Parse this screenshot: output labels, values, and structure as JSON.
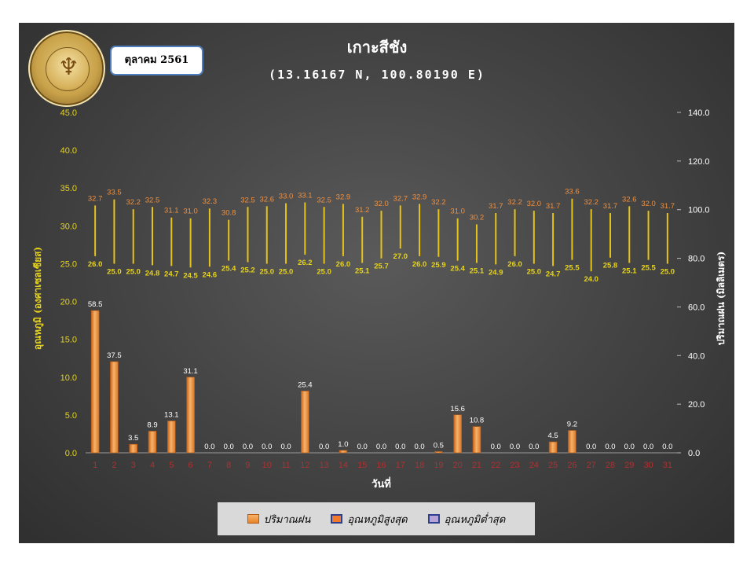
{
  "header": {
    "title": "เกาะสีชัง",
    "subtitle": "(13.16167 N, 100.80190 E)",
    "month": "ตุลาคม 2561"
  },
  "logo": {
    "name": "Meteorological Department seal",
    "text_top": "กรมอุตุนิยมวิทยา",
    "text_bottom": "METEOROLOGICAL DEPARTMENT"
  },
  "legend": {
    "rain": "ปริมาณฝน",
    "max": "อุณหภูมิสูงสุด",
    "min": "อุณหภูมิต่ำสุด"
  },
  "colors": {
    "rain": "#f0903a",
    "max_label": "#f09040",
    "min_label": "#e6d31a",
    "hi_lo_line": "#e6c21a",
    "left_axis": "#e6d31a",
    "x_ticks": "#b03030"
  },
  "chart_data": {
    "type": "bar",
    "xlabel": "วันที่",
    "ylabel_left": "อุณหภูมิ (องศาเซลเซียส)",
    "ylabel_right": "ปริมาณฝน (มิลลิเมตร)",
    "ylim_left": [
      0,
      45
    ],
    "ylim_right": [
      0,
      140
    ],
    "left_ticks": [
      "0.0",
      "5.0",
      "10.0",
      "15.0",
      "20.0",
      "25.0",
      "30.0",
      "35.0",
      "40.0",
      "45.0"
    ],
    "right_ticks": [
      "0.0",
      "20.0",
      "40.0",
      "60.0",
      "80.0",
      "100.0",
      "120.0",
      "140.0"
    ],
    "categories": [
      "1",
      "2",
      "3",
      "4",
      "5",
      "6",
      "7",
      "8",
      "9",
      "10",
      "11",
      "12",
      "13",
      "14",
      "15",
      "16",
      "17",
      "18",
      "19",
      "20",
      "21",
      "22",
      "23",
      "24",
      "25",
      "26",
      "27",
      "28",
      "29",
      "30",
      "31"
    ],
    "series": [
      {
        "name": "ปริมาณฝน",
        "axis": "right",
        "type": "bar",
        "values": [
          58.5,
          37.5,
          3.5,
          8.9,
          13.1,
          31.1,
          0.0,
          0.0,
          0.0,
          0.0,
          0.0,
          25.4,
          0.0,
          1.0,
          0.0,
          0.0,
          0.0,
          0.0,
          0.5,
          15.6,
          10.8,
          0.0,
          0.0,
          0.0,
          4.5,
          9.2,
          0.0,
          0.0,
          0.0,
          0.0,
          0.0
        ]
      },
      {
        "name": "อุณหภูมิสูงสุด",
        "axis": "left",
        "type": "hi-lo",
        "values": [
          32.7,
          33.5,
          32.2,
          32.5,
          31.1,
          31.0,
          32.3,
          30.8,
          32.5,
          32.6,
          33.0,
          33.1,
          32.5,
          32.9,
          31.2,
          32.0,
          32.7,
          32.9,
          32.2,
          31.0,
          30.2,
          31.7,
          32.2,
          32.0,
          31.7,
          33.6,
          32.2,
          31.7,
          32.6,
          32.0,
          31.7
        ]
      },
      {
        "name": "อุณหภูมิต่ำสุด",
        "axis": "left",
        "type": "hi-lo",
        "values": [
          26.0,
          25.0,
          25.0,
          24.8,
          24.7,
          24.5,
          24.6,
          25.4,
          25.2,
          25.0,
          25.0,
          26.2,
          25.0,
          26.0,
          25.1,
          25.7,
          27.0,
          26.0,
          25.9,
          25.4,
          25.1,
          24.9,
          26.0,
          25.0,
          24.7,
          25.5,
          24.0,
          25.8,
          25.1,
          25.5,
          25.0
        ]
      }
    ],
    "grid": false,
    "legend_position": "bottom"
  }
}
